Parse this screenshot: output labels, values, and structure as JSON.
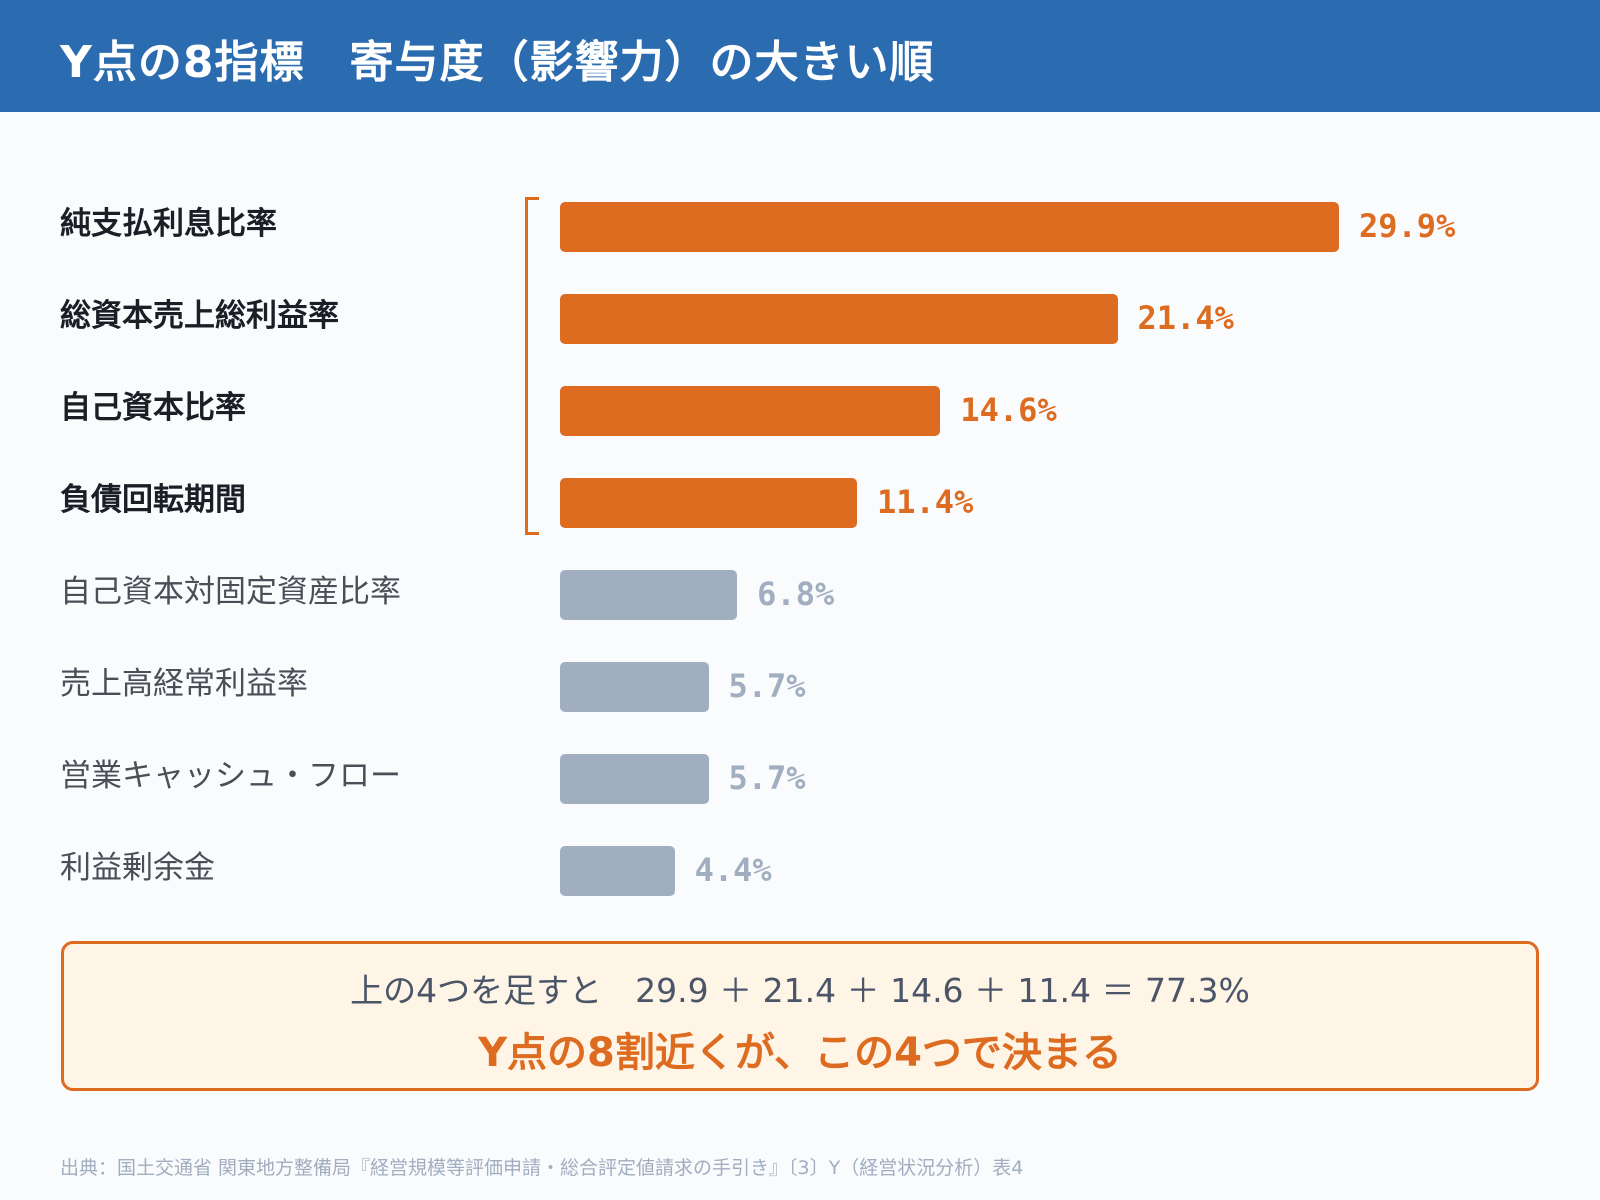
{
  "header": {
    "title": "Y点の8指標　寄与度（影響力）の大きい順"
  },
  "chart_data": {
    "type": "bar",
    "orientation": "horizontal",
    "title": "Y点の8指標　寄与度（影響力）の大きい順",
    "categories": [
      "純支払利息比率",
      "総資本売上総利益率",
      "自己資本比率",
      "負債回転期間",
      "自己資本対固定資産比率",
      "売上高経常利益率",
      "営業キャッシュ・フロー",
      "利益剰余金"
    ],
    "values": [
      29.9,
      21.4,
      14.6,
      11.4,
      6.8,
      5.7,
      5.7,
      4.4
    ],
    "value_labels": [
      "29.9%",
      "21.4%",
      "14.6%",
      "11.4%",
      "6.8%",
      "5.7%",
      "5.7%",
      "4.4%"
    ],
    "highlighted": [
      true,
      true,
      true,
      true,
      false,
      false,
      false,
      false
    ],
    "colors": {
      "highlight": "#dd6b20",
      "normal": "#a0aec0"
    },
    "grid": false,
    "legend": "none"
  },
  "summary": {
    "line1": "上の4つを足すと　29.9 ＋ 21.4 ＋ 14.6 ＋ 11.4 ＝ 77.3%",
    "line2": "Y点の8割近くが、この4つで決まる"
  },
  "source": "出典：国土交通省 関東地方整備局『経営規模等評価申請・総合評定値請求の手引き』〔3〕Y（経営状況分析）表4"
}
